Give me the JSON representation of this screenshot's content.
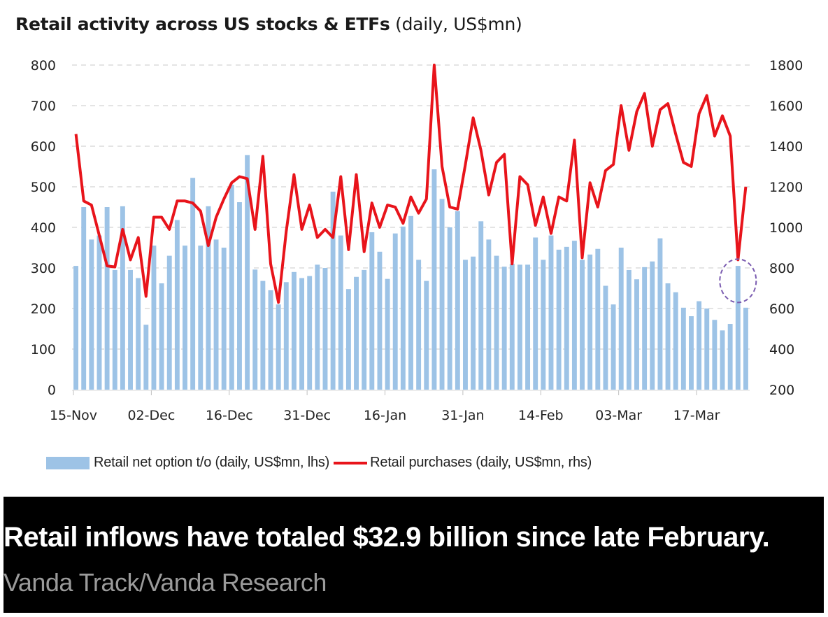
{
  "caption": {
    "text": "Retail inflows have totaled $32.9 billion since late February.",
    "source": "Vanda Track/Vanda Research"
  },
  "chart_data": {
    "type": "bar+line",
    "title": "Retail activity across US stocks & ETFs",
    "title_suffix": "(daily, US$mn)",
    "xlabel": "",
    "x_tick_labels": [
      "15-Nov",
      "02-Dec",
      "16-Dec",
      "31-Dec",
      "16-Jan",
      "31-Jan",
      "14-Feb",
      "03-Mar",
      "17-Mar"
    ],
    "x_tick_indices": [
      0,
      10,
      20,
      30,
      40,
      50,
      60,
      70,
      80
    ],
    "left_axis": {
      "label": "lhs",
      "ylim": [
        0,
        800
      ],
      "ticks": [
        0,
        100,
        200,
        300,
        400,
        500,
        600,
        700,
        800
      ]
    },
    "right_axis": {
      "label": "rhs",
      "ylim": [
        200,
        1800
      ],
      "ticks": [
        200,
        400,
        600,
        800,
        1000,
        1200,
        1400,
        1600,
        1800
      ]
    },
    "grid": true,
    "legend_position": "bottom",
    "series": [
      {
        "name": "Retail net option t/o (daily, US$mn, lhs)",
        "type": "bar",
        "axis": "left",
        "color": "#9DC3E6",
        "values": [
          305,
          450,
          370,
          380,
          450,
          295,
          452,
          295,
          275,
          160,
          355,
          262,
          330,
          418,
          355,
          522,
          355,
          452,
          370,
          350,
          505,
          462,
          578,
          296,
          268,
          245,
          210,
          265,
          290,
          275,
          280,
          308,
          300,
          488,
          380,
          248,
          278,
          295,
          388,
          340,
          273,
          385,
          402,
          428,
          320,
          268,
          543,
          470,
          400,
          440,
          320,
          328,
          415,
          370,
          330,
          303,
          310,
          308,
          308,
          375,
          320,
          380,
          345,
          352,
          367,
          320,
          333,
          347,
          256,
          210,
          350,
          295,
          272,
          302,
          316,
          373,
          262,
          240,
          202,
          181,
          218,
          200,
          172,
          146,
          162,
          305,
          202
        ]
      },
      {
        "name": "Retail purchases (daily, US$mn, rhs)",
        "type": "line",
        "axis": "right",
        "color": "#e8141b",
        "values": [
          1460,
          1130,
          1110,
          960,
          810,
          805,
          990,
          840,
          950,
          660,
          1050,
          1050,
          990,
          1130,
          1130,
          1120,
          1080,
          910,
          1050,
          1140,
          1220,
          1250,
          1240,
          990,
          1350,
          820,
          630,
          980,
          1260,
          990,
          1110,
          950,
          990,
          950,
          1250,
          890,
          1260,
          880,
          1120,
          1000,
          1110,
          1100,
          1020,
          1150,
          1070,
          1140,
          1800,
          1300,
          1100,
          1090,
          1310,
          1540,
          1380,
          1160,
          1320,
          1360,
          820,
          1250,
          1210,
          1010,
          1150,
          970,
          1150,
          1130,
          1430,
          850,
          1220,
          1100,
          1280,
          1310,
          1600,
          1380,
          1570,
          1660,
          1400,
          1580,
          1610,
          1460,
          1320,
          1300,
          1560,
          1650,
          1450,
          1550,
          1450,
          840,
          1200
        ]
      }
    ],
    "annotation": {
      "type": "dashed-circle",
      "color": "#7a5bb0",
      "at_index": 85
    }
  }
}
